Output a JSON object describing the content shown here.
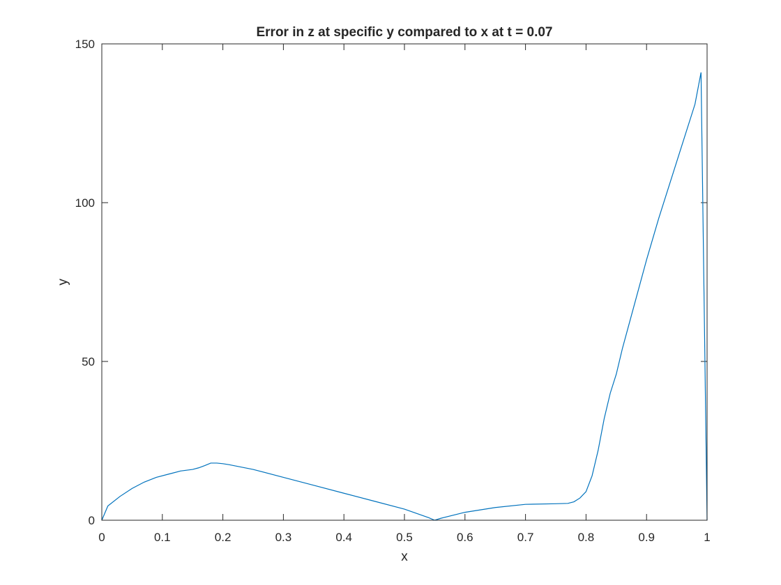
{
  "chart_data": {
    "type": "line",
    "title": "Error in z at specific y compared to x at t = 0.07",
    "xlabel": "x",
    "ylabel": "y",
    "xlim": [
      0,
      1
    ],
    "ylim": [
      0,
      150
    ],
    "x_ticks": [
      "0",
      "0.1",
      "0.2",
      "0.3",
      "0.4",
      "0.5",
      "0.6",
      "0.7",
      "0.8",
      "0.9",
      "1"
    ],
    "y_ticks": [
      "0",
      "50",
      "100",
      "150"
    ],
    "grid": false,
    "line_color": "#0072bd",
    "series": [
      {
        "x": [
          0,
          0.01,
          0.03,
          0.05,
          0.07,
          0.09,
          0.11,
          0.13,
          0.15,
          0.16,
          0.17,
          0.18,
          0.19,
          0.2,
          0.21,
          0.25,
          0.3,
          0.35,
          0.4,
          0.45,
          0.5,
          0.54,
          0.55,
          0.56,
          0.6,
          0.65,
          0.7,
          0.75,
          0.77,
          0.78,
          0.79,
          0.8,
          0.81,
          0.82,
          0.83,
          0.84,
          0.85,
          0.86,
          0.87,
          0.88,
          0.9,
          0.92,
          0.94,
          0.96,
          0.98,
          0.99,
          1.0
        ],
        "y": [
          0,
          4.5,
          7.5,
          10,
          12,
          13.5,
          14.5,
          15.5,
          16,
          16.5,
          17.2,
          18,
          18,
          17.8,
          17.5,
          16,
          13.5,
          11,
          8.5,
          6,
          3.5,
          0.8,
          0,
          0.6,
          2.5,
          4,
          5,
          5.2,
          5.3,
          5.8,
          7,
          9,
          14,
          22,
          32,
          40,
          46,
          54,
          61,
          68,
          82,
          95,
          107,
          119,
          131,
          141,
          0
        ]
      }
    ]
  }
}
